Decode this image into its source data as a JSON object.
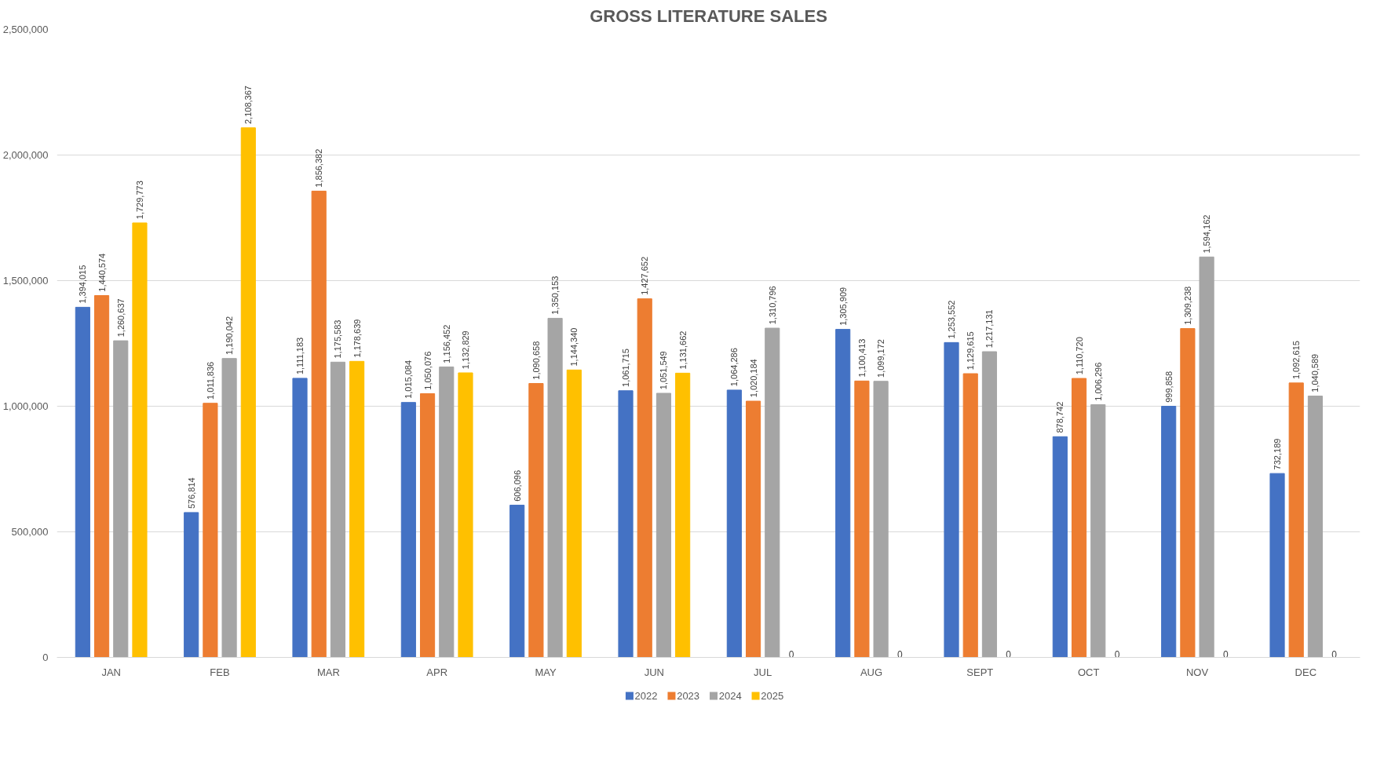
{
  "chart_data": {
    "type": "bar",
    "title": "GROSS LITERATURE SALES",
    "categories": [
      "JAN",
      "FEB",
      "MAR",
      "APR",
      "MAY",
      "JUN",
      "JUL",
      "AUG",
      "SEPT",
      "OCT",
      "NOV",
      "DEC"
    ],
    "series": [
      {
        "name": "2022",
        "color": "#4472c4",
        "values": [
          1394015,
          576814,
          1111183,
          1015084,
          606096,
          1061715,
          1064286,
          1305909,
          1253552,
          878742,
          999858,
          732189
        ],
        "value_labels": [
          "1,394,015",
          "576,814",
          "1,111,183",
          "1,015,084",
          "606,096",
          "1,061,715",
          "1,064,286",
          "1,305,909",
          "1,253,552",
          "878,742",
          "999,858",
          "732,189"
        ]
      },
      {
        "name": "2023",
        "color": "#ed7d31",
        "values": [
          1440574,
          1011836,
          1856382,
          1050076,
          1090658,
          1427652,
          1020184,
          1100413,
          1129615,
          1110720,
          1309238,
          1092615
        ],
        "value_labels": [
          "1,440,574",
          "1,011,836",
          "1,856,382",
          "1,050,076",
          "1,090,658",
          "1,427,652",
          "1,020,184",
          "1,100,413",
          "1,129,615",
          "1,110,720",
          "1,309,238",
          "1,092,615"
        ]
      },
      {
        "name": "2024",
        "color": "#a5a5a5",
        "values": [
          1260637,
          1190042,
          1175583,
          1156452,
          1350153,
          1051549,
          1310796,
          1099172,
          1217131,
          1006296,
          1594162,
          1040589
        ],
        "value_labels": [
          "1,260,637",
          "1,190,042",
          "1,175,583",
          "1,156,452",
          "1,350,153",
          "1,051,549",
          "1,310,796",
          "1,099,172",
          "1,217,131",
          "1,006,296",
          "1,594,162",
          "1,040,589"
        ]
      },
      {
        "name": "2025",
        "color": "#ffc000",
        "values": [
          1729773,
          2108367,
          1178639,
          1132829,
          1144340,
          1131662,
          0,
          0,
          0,
          0,
          0,
          0
        ],
        "value_labels": [
          "1,729,773",
          "2,108,367",
          "1,178,639",
          "1,132,829",
          "1,144,340",
          "1,131,662",
          "0",
          "0",
          "0",
          "0",
          "0",
          "0"
        ]
      }
    ],
    "ylim": [
      0,
      2500000
    ],
    "yticks": [
      {
        "value": 0,
        "label": "0"
      },
      {
        "value": 500000,
        "label": "500,000"
      },
      {
        "value": 1000000,
        "label": "1,000,000"
      },
      {
        "value": 1500000,
        "label": "1,500,000"
      },
      {
        "value": 2000000,
        "label": "2,000,000"
      },
      {
        "value": 2500000,
        "label": "2,500,000"
      }
    ],
    "grid": "y",
    "legend": "bottom"
  }
}
